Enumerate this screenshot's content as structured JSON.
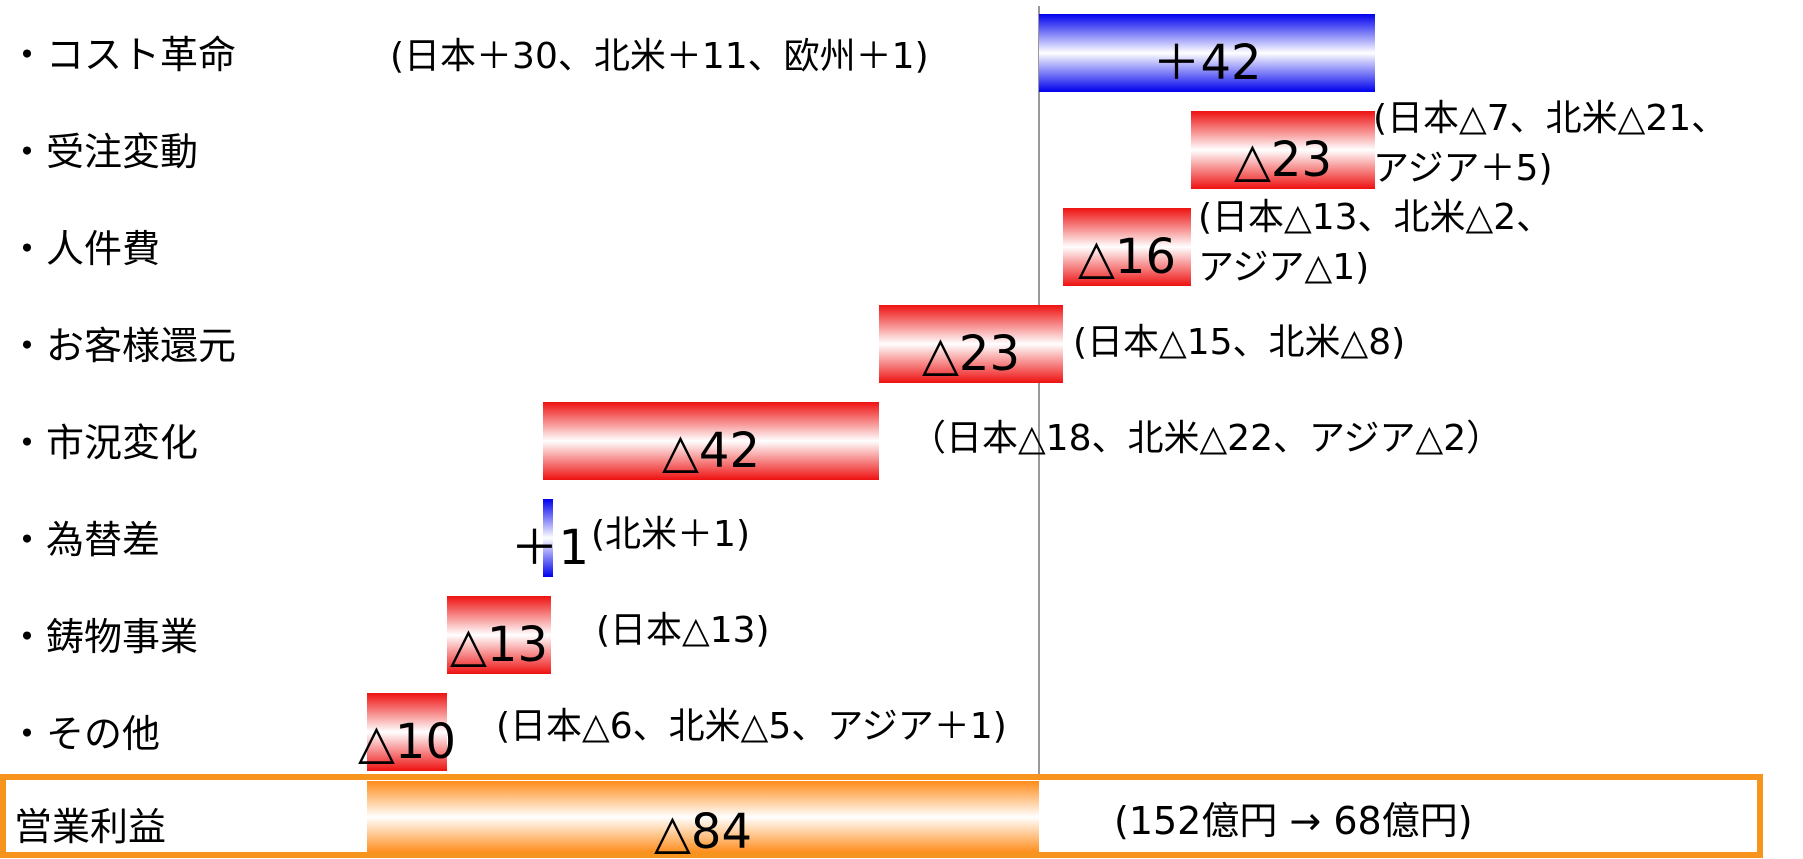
{
  "chart_data": {
    "type": "bar",
    "orientation": "horizontal",
    "subtype": "waterfall",
    "title": "",
    "xlabel": "",
    "ylabel": "",
    "unit": "億円",
    "grid": false,
    "categories": [
      "・コスト革命",
      "・受注変動",
      "・人件費",
      "・お客様還元",
      "・市況変化",
      "・為替差",
      "・鋳物事業",
      "・その他"
    ],
    "values": [
      42,
      -23,
      -16,
      -23,
      -42,
      1,
      -13,
      -10
    ],
    "value_labels": [
      "＋42",
      "△23",
      "△16",
      "△23",
      "△42",
      "＋1",
      "△13",
      "△10"
    ],
    "notes": [
      [
        "(日本＋30、北米＋11、欧州＋1)"
      ],
      [
        "(日本△7、北米△21、",
        "アジア＋5)"
      ],
      [
        "(日本△13、北米△2、",
        "アジア△1)"
      ],
      [
        "(日本△15、北米△8)"
      ],
      [
        "（日本△18、北米△22、アジア△2）"
      ],
      [
        "(北米＋1)"
      ],
      [
        "(日本△13)"
      ],
      [
        "(日本△6、北米△5、アジア＋1)"
      ]
    ],
    "total": {
      "label": "営業利益",
      "value": -84,
      "value_label": "△84",
      "note": "(152億円 → 68億円)"
    },
    "colors": {
      "positive": "#0000ee",
      "negative": "#ee1111",
      "total": "#ff8c1a",
      "frame": "#f7941d",
      "axis": "#999999"
    }
  }
}
